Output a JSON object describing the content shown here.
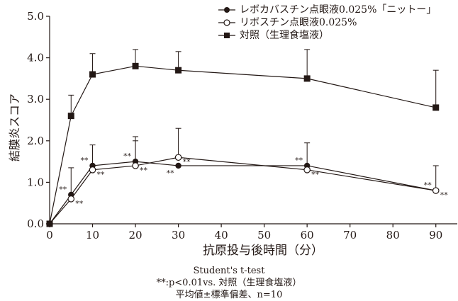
{
  "chart_data": {
    "type": "line",
    "xlabel": "抗原投与後時間（分）",
    "ylabel": "結膜炎スコア",
    "xlim": [
      0,
      95
    ],
    "ylim": [
      0,
      5.0
    ],
    "xticks": [
      0,
      10,
      20,
      30,
      40,
      50,
      60,
      70,
      80,
      90
    ],
    "yticks": [
      0.0,
      1.0,
      2.0,
      3.0,
      4.0,
      5.0
    ],
    "ytick_labels": [
      "0.0",
      "1.0",
      "2.0",
      "3.0",
      "4.0",
      "5.0"
    ],
    "legend_position": "top-right",
    "series": [
      {
        "name": "レボカバスチン点眼液0.025%「ニットー」",
        "marker": "filled-circle",
        "x": [
          0,
          5,
          10,
          20,
          30,
          60,
          90
        ],
        "y": [
          0.0,
          0.7,
          1.4,
          1.5,
          1.4,
          1.4,
          0.8
        ],
        "err": [
          0,
          0,
          0.5,
          0.5,
          0,
          0,
          0
        ],
        "sig": [
          false,
          true,
          true,
          true,
          true,
          true,
          true
        ],
        "sig_side": [
          "",
          "left",
          "left",
          "left",
          "below",
          "left",
          "left"
        ]
      },
      {
        "name": "リボスチン点眼液0.025%",
        "marker": "open-circle",
        "x": [
          0,
          5,
          10,
          20,
          30,
          60,
          90
        ],
        "y": [
          0.0,
          0.6,
          1.3,
          1.4,
          1.6,
          1.3,
          0.8
        ],
        "err": [
          0,
          0.75,
          0,
          0.7,
          0.7,
          0.65,
          0.6
        ],
        "sig": [
          false,
          true,
          true,
          true,
          true,
          true,
          true
        ],
        "sig_side": [
          "",
          "right",
          "right",
          "right",
          "right",
          "right",
          "right"
        ]
      },
      {
        "name": "対照（生理食塩液）",
        "marker": "filled-square",
        "x": [
          0,
          5,
          10,
          20,
          30,
          60,
          90
        ],
        "y": [
          0.0,
          2.6,
          3.6,
          3.8,
          3.7,
          3.5,
          2.8
        ],
        "err": [
          0,
          0.5,
          0.5,
          0.4,
          0.45,
          0.7,
          0.9
        ],
        "sig": [
          false,
          false,
          false,
          false,
          false,
          false,
          false
        ],
        "sig_side": [
          "",
          "",
          "",
          "",
          "",
          "",
          ""
        ]
      }
    ],
    "sig_label": "**"
  },
  "footnote": {
    "line1": "Student's t-test",
    "line2": "**:p<0.01vs. 対照（生理食塩液）",
    "line3": "平均値±標準偏差、n=10"
  },
  "colors": {
    "ink": "#231815"
  }
}
